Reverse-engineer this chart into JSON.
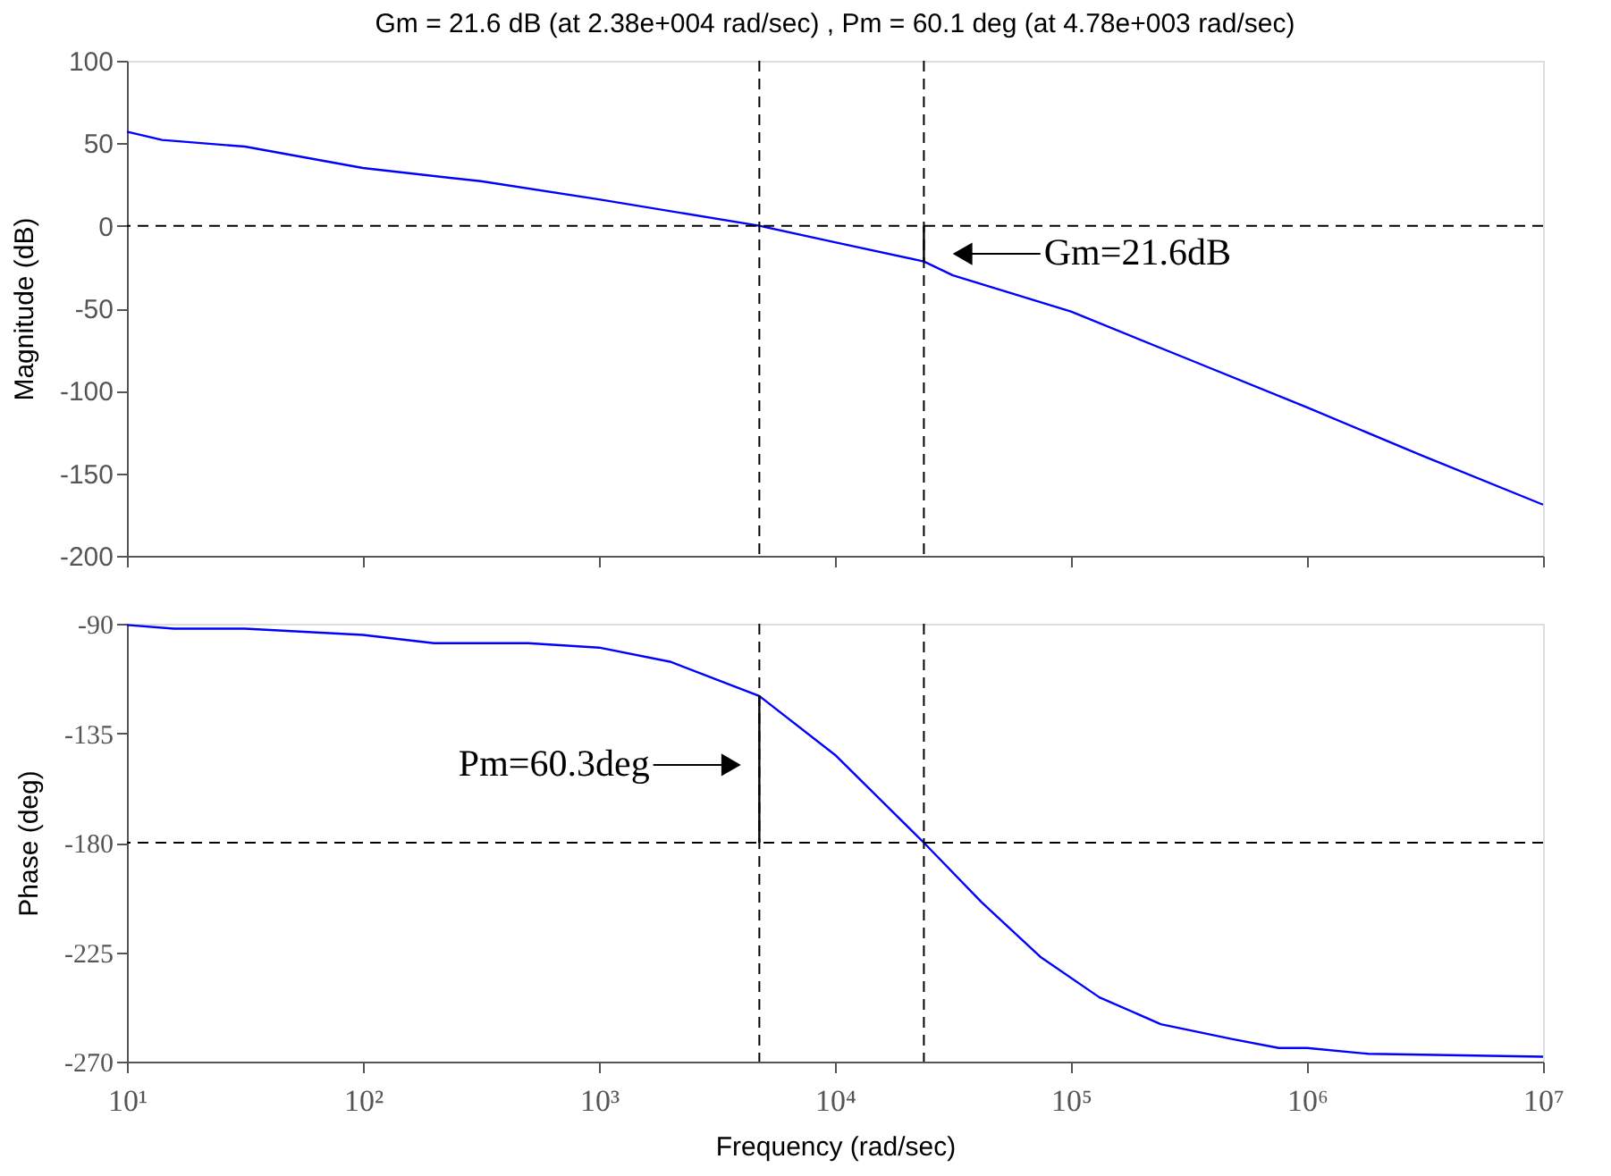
{
  "chart_data": [
    {
      "type": "line",
      "title": "Gm = 21.6 dB (at 2.38e+004 rad/sec) ,  Pm = 60.1 deg (at 4.78e+003 rad/sec)",
      "ylabel": "Magnitude (dB)",
      "xlim": [
        10,
        10000000
      ],
      "xticks": [
        10,
        100,
        1000,
        10000,
        100000,
        1000000,
        10000000
      ],
      "ylim": [
        -200,
        100
      ],
      "yticks": [
        -200,
        -150,
        -100,
        -50,
        0,
        50,
        100
      ],
      "log": "x",
      "grid": false,
      "tick_labels": "y",
      "line_style": "solid",
      "series": [
        {
          "color": "#0000ff",
          "x": [
            10,
            14.1,
            31.6,
            100,
            316,
            1000,
            4780,
            10000,
            23800,
            31600,
            100000,
            316000,
            1000000,
            3160000,
            10000000
          ],
          "values": [
            57,
            52,
            48,
            35,
            27,
            16,
            0,
            -10,
            -21.6,
            -30,
            -52,
            -81,
            -110,
            -140,
            -169
          ]
        },
        {
          "color": "#000000",
          "x": [
            23800,
            23800
          ],
          "values": [
            0,
            -21.6
          ]
        }
      ],
      "ref_lines": [
        {
          "axis": "y",
          "value": 0,
          "color": "#000000",
          "line_style": "dashed"
        },
        {
          "axis": "x",
          "value": 4780,
          "color": "#000000",
          "line_style": "dashed"
        },
        {
          "axis": "x",
          "value": 23800,
          "color": "#000000",
          "line_style": "dashed"
        }
      ],
      "annotations": [
        {
          "text": "Gm=21.6dB",
          "x": 34700,
          "y": -17
        }
      ]
    },
    {
      "type": "line",
      "xlabel": "Frequency  (rad/sec)",
      "ylabel": "Phase (deg)",
      "xlim": [
        10,
        10000000
      ],
      "xticks": [
        {
          "value": 10,
          "label": "10¹"
        },
        {
          "value": 100,
          "label": "10²"
        },
        {
          "value": 1000,
          "label": "10³"
        },
        {
          "value": 10000,
          "label": "10⁴"
        },
        {
          "value": 100000,
          "label": "10⁵"
        },
        {
          "value": 1000000,
          "label": "10⁶"
        },
        {
          "value": 10000000,
          "label": "10⁷"
        }
      ],
      "ylim": [
        -270,
        -90
      ],
      "yticks": [
        -270,
        -225,
        -180,
        -135,
        -90
      ],
      "log": "x",
      "grid": false,
      "line_style": "solid",
      "series": [
        {
          "color": "#0000ff",
          "x": [
            10,
            15.8,
            31.6,
            100,
            200,
            500,
            1000,
            2000,
            4780,
            10000,
            23800,
            41700,
            74100,
            132000,
            240000,
            479000,
            759000,
            1000000,
            1820000,
            10000000
          ],
          "values": [
            -90.5,
            -92,
            -92,
            -94.6,
            -98,
            -98,
            -99.8,
            -105.6,
            -119.7,
            -143.9,
            -180,
            -204.4,
            -226.9,
            -243.6,
            -254.6,
            -260.7,
            -264.4,
            -264.4,
            -266.8,
            -268
          ]
        },
        {
          "color": "#000000",
          "x": [
            4780,
            4780
          ],
          "values": [
            -180,
            -119.7
          ]
        }
      ],
      "ref_lines": [
        {
          "axis": "y",
          "value": -180,
          "color": "#000000",
          "line_style": "dashed"
        },
        {
          "axis": "x",
          "value": 4780,
          "color": "#000000",
          "line_style": "dashed"
        },
        {
          "axis": "x",
          "value": 23800,
          "color": "#000000",
          "line_style": "dashed"
        }
      ],
      "annotations": [
        {
          "text": "Pm=60.3deg",
          "x": 3630,
          "y": -148
        }
      ]
    }
  ]
}
